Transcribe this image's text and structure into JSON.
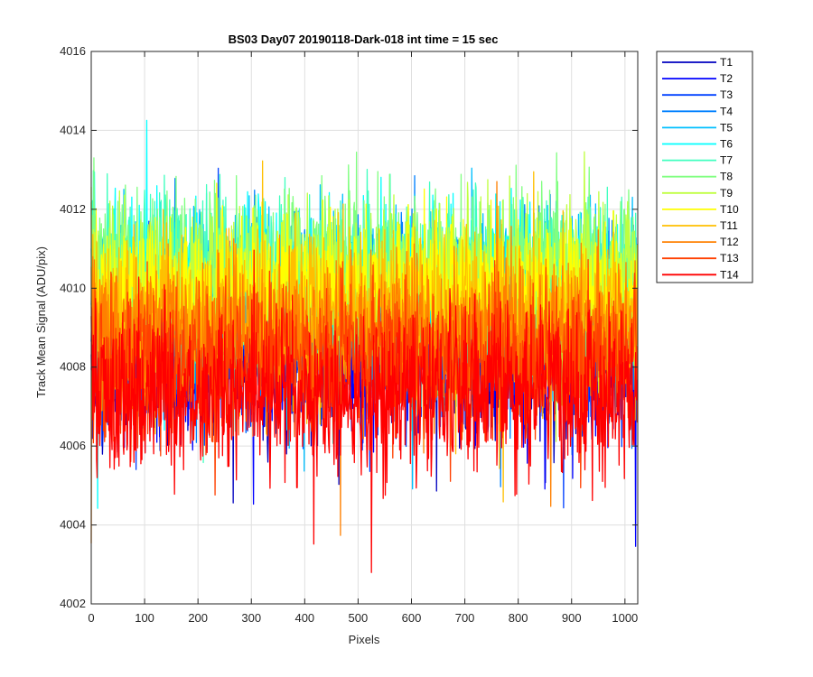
{
  "chart_data": {
    "type": "line",
    "title": "BS03 Day07 20190118-Dark-018 int time = 15 sec",
    "xlabel": "Pixels",
    "ylabel": "Track Mean Signal (ADU/pix)",
    "xlim": [
      0,
      1024
    ],
    "ylim": [
      4002,
      4016
    ],
    "xticks": [
      "0",
      "100",
      "200",
      "300",
      "400",
      "500",
      "600",
      "700",
      "800",
      "900",
      "1000"
    ],
    "yticks": [
      "4002",
      "4004",
      "4006",
      "4008",
      "4010",
      "4012",
      "4014",
      "4016"
    ],
    "grid": true,
    "legend_position": "outside-right-top",
    "n_points": 1024,
    "series": [
      {
        "name": "T1",
        "color": "#0000BF",
        "mean": 4008.2,
        "spread": 1.0
      },
      {
        "name": "T2",
        "color": "#0000FF",
        "mean": 4008.4,
        "spread": 1.0
      },
      {
        "name": "T3",
        "color": "#0040FF",
        "mean": 4008.8,
        "spread": 1.05
      },
      {
        "name": "T4",
        "color": "#0080FF",
        "mean": 4009.4,
        "spread": 1.1
      },
      {
        "name": "T5",
        "color": "#00BFFF",
        "mean": 4009.8,
        "spread": 1.1
      },
      {
        "name": "T6",
        "color": "#00FFFF",
        "mean": 4010.0,
        "spread": 1.05
      },
      {
        "name": "T7",
        "color": "#40FFBF",
        "mean": 4010.2,
        "spread": 1.05
      },
      {
        "name": "T8",
        "color": "#80FF80",
        "mean": 4010.4,
        "spread": 1.05
      },
      {
        "name": "T9",
        "color": "#BFFF40",
        "mean": 4010.2,
        "spread": 1.0
      },
      {
        "name": "T10",
        "color": "#FFFF00",
        "mean": 4009.9,
        "spread": 1.0
      },
      {
        "name": "T11",
        "color": "#FFBF00",
        "mean": 4009.3,
        "spread": 1.0
      },
      {
        "name": "T12",
        "color": "#FF8000",
        "mean": 4008.7,
        "spread": 1.0
      },
      {
        "name": "T13",
        "color": "#FF4000",
        "mean": 4008.1,
        "spread": 1.0
      },
      {
        "name": "T14",
        "color": "#FF0000",
        "mean": 4007.3,
        "spread": 1.0
      }
    ]
  }
}
